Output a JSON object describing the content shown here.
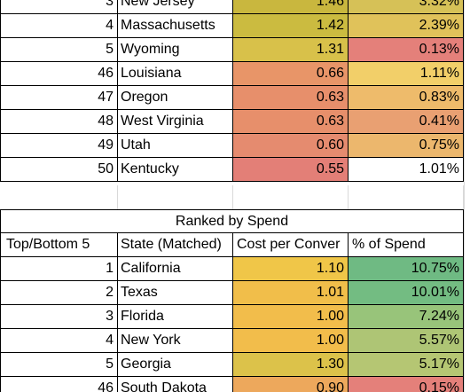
{
  "table_top": {
    "rows": [
      {
        "rank": "3",
        "state": "New Jersey",
        "cost": "1.46",
        "pct": "3.32%",
        "cost_color": "#c9b73e",
        "pct_color": "#d6c157"
      },
      {
        "rank": "4",
        "state": "Massachusetts",
        "cost": "1.42",
        "pct": "2.39%",
        "cost_color": "#cbbb40",
        "pct_color": "#e0c25a"
      },
      {
        "rank": "5",
        "state": "Wyoming",
        "cost": "1.31",
        "pct": "0.13%",
        "cost_color": "#d8c14a",
        "pct_color": "#e4807a"
      },
      {
        "rank": "46",
        "state": "Louisiana",
        "cost": "0.66",
        "pct": "1.11%",
        "cost_color": "#e89568",
        "pct_color": "#f2cf69"
      },
      {
        "rank": "47",
        "state": "Oregon",
        "cost": "0.63",
        "pct": "0.83%",
        "cost_color": "#e78f6b",
        "pct_color": "#eebb6b"
      },
      {
        "rank": "48",
        "state": "West Virginia",
        "cost": "0.63",
        "pct": "0.41%",
        "cost_color": "#e78f6b",
        "pct_color": "#e9a072"
      },
      {
        "rank": "49",
        "state": "Utah",
        "cost": "0.60",
        "pct": "0.75%",
        "cost_color": "#e58b6f",
        "pct_color": "#ecb76d"
      },
      {
        "rank": "50",
        "state": "Kentucky",
        "cost": "0.55",
        "pct": "1.01%",
        "cost_color": "#e37f77",
        "pct_color": "#ffffff"
      }
    ]
  },
  "table_spend": {
    "title": "Ranked by Spend",
    "headers": [
      "Top/Bottom 5",
      "State (Matched)",
      "Cost per Conver",
      "% of Spend"
    ],
    "rows": [
      {
        "rank": "1",
        "state": "California",
        "cost": "1.10",
        "pct": "10.75%",
        "cost_color": "#f0c648",
        "pct_color": "#6fba83"
      },
      {
        "rank": "2",
        "state": "Texas",
        "cost": "1.01",
        "pct": "10.01%",
        "cost_color": "#f1be4a",
        "pct_color": "#73bc82"
      },
      {
        "rank": "3",
        "state": "Florida",
        "cost": "1.00",
        "pct": "7.24%",
        "cost_color": "#f2bd4b",
        "pct_color": "#98c47a"
      },
      {
        "rank": "4",
        "state": "New York",
        "cost": "1.00",
        "pct": "5.57%",
        "cost_color": "#f2bd4b",
        "pct_color": "#aec575"
      },
      {
        "rank": "5",
        "state": "Georgia",
        "cost": "1.30",
        "pct": "5.17%",
        "cost_color": "#dcc24a",
        "pct_color": "#b5c673"
      },
      {
        "rank": "46",
        "state": "South Dakota",
        "cost": "0.90",
        "pct": "0.15%",
        "cost_color": "#eda85c",
        "pct_color": "#e4807a"
      }
    ]
  }
}
